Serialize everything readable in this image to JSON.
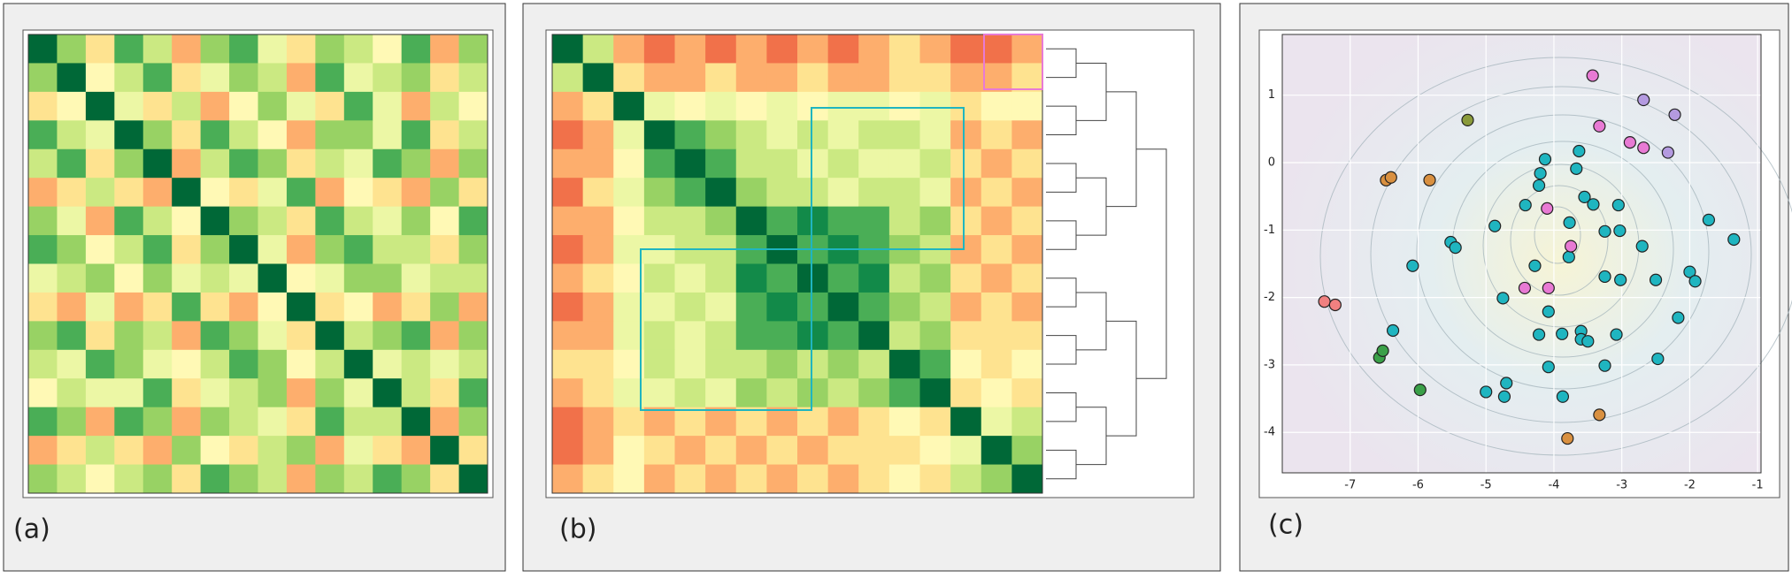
{
  "chart_data": [
    {
      "type": "heatmap",
      "panel_label": "(a)",
      "clim": [
        0,
        10
      ],
      "cmap": [
        "#d73027",
        "#fc8d59",
        "#fee08b",
        "#ffffbf",
        "#d9ef8b",
        "#91cf60",
        "#1a9850",
        "#006837"
      ],
      "z": [
        [
          10,
          7,
          3,
          8,
          6,
          2,
          7,
          8,
          5,
          3,
          7,
          6,
          4,
          8,
          2,
          7
        ],
        [
          7,
          10,
          4,
          6,
          8,
          3,
          5,
          7,
          6,
          2,
          8,
          5,
          6,
          7,
          3,
          6
        ],
        [
          3,
          4,
          10,
          5,
          3,
          6,
          2,
          4,
          7,
          5,
          3,
          8,
          5,
          2,
          6,
          4
        ],
        [
          8,
          6,
          5,
          10,
          7,
          3,
          8,
          6,
          4,
          2,
          7,
          7,
          5,
          8,
          3,
          6
        ],
        [
          6,
          8,
          3,
          7,
          10,
          2,
          6,
          8,
          7,
          3,
          6,
          5,
          8,
          7,
          2,
          7
        ],
        [
          2,
          3,
          6,
          3,
          2,
          10,
          4,
          3,
          5,
          8,
          2,
          4,
          3,
          2,
          7,
          3
        ],
        [
          7,
          5,
          2,
          8,
          6,
          4,
          10,
          7,
          6,
          3,
          8,
          6,
          5,
          7,
          4,
          8
        ],
        [
          8,
          7,
          4,
          6,
          8,
          3,
          7,
          10,
          5,
          2,
          7,
          8,
          6,
          6,
          3,
          7
        ],
        [
          5,
          6,
          7,
          4,
          7,
          5,
          6,
          5,
          10,
          4,
          5,
          7,
          7,
          5,
          6,
          6
        ],
        [
          3,
          2,
          5,
          2,
          3,
          8,
          3,
          2,
          4,
          10,
          3,
          4,
          2,
          3,
          7,
          2
        ],
        [
          7,
          8,
          3,
          7,
          6,
          2,
          8,
          7,
          5,
          3,
          10,
          6,
          7,
          8,
          2,
          7
        ],
        [
          6,
          5,
          8,
          7,
          5,
          4,
          6,
          8,
          7,
          4,
          6,
          10,
          5,
          6,
          5,
          6
        ],
        [
          4,
          6,
          5,
          5,
          8,
          3,
          5,
          6,
          7,
          2,
          7,
          5,
          10,
          6,
          3,
          8
        ],
        [
          8,
          7,
          2,
          8,
          7,
          2,
          7,
          6,
          5,
          3,
          8,
          6,
          6,
          10,
          2,
          7
        ],
        [
          2,
          3,
          6,
          3,
          2,
          7,
          4,
          3,
          6,
          7,
          2,
          5,
          3,
          2,
          10,
          3
        ],
        [
          7,
          6,
          4,
          6,
          7,
          3,
          8,
          7,
          6,
          2,
          7,
          6,
          8,
          7,
          3,
          10
        ]
      ]
    },
    {
      "type": "heatmap",
      "panel_label": "(b)",
      "clim": [
        0,
        10
      ],
      "dendrogram": true,
      "cmap": [
        "#d73027",
        "#fc8d59",
        "#fee08b",
        "#ffffbf",
        "#d9ef8b",
        "#91cf60",
        "#1a9850",
        "#006837"
      ],
      "z": [
        [
          10,
          6,
          2,
          1,
          2,
          1,
          2,
          1,
          2,
          1,
          2,
          3,
          2,
          1,
          1,
          2
        ],
        [
          6,
          10,
          3,
          2,
          2,
          3,
          2,
          2,
          3,
          2,
          2,
          3,
          3,
          2,
          2,
          3
        ],
        [
          2,
          3,
          10,
          5,
          4,
          5,
          4,
          5,
          4,
          5,
          5,
          4,
          5,
          3,
          4,
          4
        ],
        [
          1,
          2,
          5,
          10,
          8,
          7,
          6,
          5,
          6,
          5,
          6,
          6,
          5,
          2,
          3,
          2
        ],
        [
          2,
          2,
          4,
          8,
          10,
          8,
          6,
          6,
          5,
          6,
          5,
          5,
          6,
          3,
          2,
          3
        ],
        [
          1,
          3,
          5,
          7,
          8,
          10,
          7,
          6,
          6,
          5,
          6,
          6,
          5,
          2,
          3,
          2
        ],
        [
          2,
          2,
          4,
          6,
          6,
          7,
          10,
          8,
          9,
          8,
          8,
          6,
          7,
          3,
          2,
          3
        ],
        [
          1,
          2,
          5,
          5,
          6,
          6,
          8,
          10,
          8,
          9,
          8,
          7,
          6,
          2,
          3,
          2
        ],
        [
          2,
          3,
          4,
          6,
          5,
          6,
          9,
          8,
          10,
          8,
          9,
          6,
          7,
          3,
          2,
          3
        ],
        [
          1,
          2,
          5,
          5,
          6,
          5,
          8,
          9,
          8,
          10,
          8,
          7,
          6,
          2,
          3,
          2
        ],
        [
          2,
          2,
          5,
          6,
          5,
          6,
          8,
          8,
          9,
          8,
          10,
          6,
          7,
          3,
          3,
          3
        ],
        [
          3,
          3,
          4,
          6,
          5,
          6,
          6,
          7,
          6,
          7,
          6,
          10,
          8,
          4,
          3,
          4
        ],
        [
          2,
          3,
          5,
          5,
          6,
          5,
          7,
          6,
          7,
          6,
          7,
          8,
          10,
          3,
          4,
          3
        ],
        [
          1,
          2,
          3,
          2,
          3,
          2,
          3,
          2,
          3,
          2,
          3,
          4,
          3,
          10,
          5,
          6
        ],
        [
          1,
          2,
          4,
          3,
          2,
          3,
          2,
          3,
          2,
          3,
          3,
          3,
          4,
          5,
          10,
          7
        ],
        [
          2,
          3,
          4,
          2,
          3,
          2,
          3,
          2,
          3,
          2,
          3,
          4,
          3,
          6,
          7,
          10
        ]
      ]
    },
    {
      "type": "scatter",
      "panel_label": "(c)",
      "grid": true,
      "xlim": [
        -8,
        -0.95
      ],
      "ylim": [
        -4.6,
        1.9
      ],
      "xticks": [
        -7,
        -6,
        -5,
        -4,
        -3,
        -2,
        -1
      ],
      "yticks": [
        -4,
        -3,
        -2,
        -1,
        0,
        1
      ],
      "series": [
        {
          "color": "#1fb5c0",
          "x": [
            -4.13,
            -3.63,
            -4.2,
            -3.67,
            -4.22,
            -4.42,
            -3.55,
            -3.77,
            -3.42,
            -3.05,
            -4.87,
            -3.25,
            -3.03,
            -2.7,
            -1.72,
            -1.35,
            -5.52,
            -5.45,
            -6.08,
            -3.78,
            -4.28,
            -3.25,
            -3.02,
            -2.5,
            -2.0,
            -1.92,
            -4.75,
            -4.08,
            -3.88,
            -3.6,
            -4.22,
            -3.08,
            -3.6,
            -3.5,
            -2.17,
            -6.37,
            -2.47,
            -4.08,
            -3.25,
            -4.7,
            -5.0,
            -4.73,
            -3.87
          ],
          "values": [
            0.05,
            0.17,
            -0.16,
            -0.09,
            -0.34,
            -0.63,
            -0.51,
            -0.89,
            -0.62,
            -0.63,
            -0.94,
            -1.02,
            -1.01,
            -1.24,
            -0.85,
            -1.14,
            -1.18,
            -1.26,
            -1.53,
            -1.4,
            -1.53,
            -1.69,
            -1.74,
            -1.74,
            -1.62,
            -1.76,
            -2.01,
            -2.21,
            -2.54,
            -2.5,
            -2.55,
            -2.55,
            -2.62,
            -2.65,
            -2.3,
            -2.49,
            -2.91,
            -3.03,
            -3.01,
            -3.27,
            -3.4,
            -3.47,
            -3.47
          ]
        },
        {
          "color": "#e87ad4",
          "x": [
            -3.43,
            -3.33,
            -2.88,
            -2.68,
            -4.1,
            -3.75,
            -4.43,
            -4.08
          ],
          "values": [
            1.29,
            0.54,
            0.3,
            0.22,
            -0.68,
            -1.24,
            -1.86,
            -1.86
          ]
        },
        {
          "color": "#f08080",
          "x": [
            -7.38,
            -7.22
          ],
          "values": [
            -2.06,
            -2.11
          ]
        },
        {
          "color": "#b49ae0",
          "x": [
            -2.68,
            -2.22,
            -2.32
          ],
          "values": [
            0.93,
            0.71,
            0.15
          ]
        },
        {
          "color": "#8a9a3a",
          "x": [
            -5.27
          ],
          "values": [
            0.63
          ]
        },
        {
          "color": "#d99040",
          "x": [
            -6.47,
            -6.4,
            -5.83,
            -3.33,
            -3.8
          ],
          "values": [
            -0.26,
            -0.22,
            -0.26,
            -3.74,
            -4.09
          ]
        },
        {
          "color": "#3aa048",
          "x": [
            -6.57,
            -6.52,
            -5.97
          ],
          "values": [
            -2.89,
            -2.79,
            -3.37
          ]
        }
      ]
    }
  ]
}
